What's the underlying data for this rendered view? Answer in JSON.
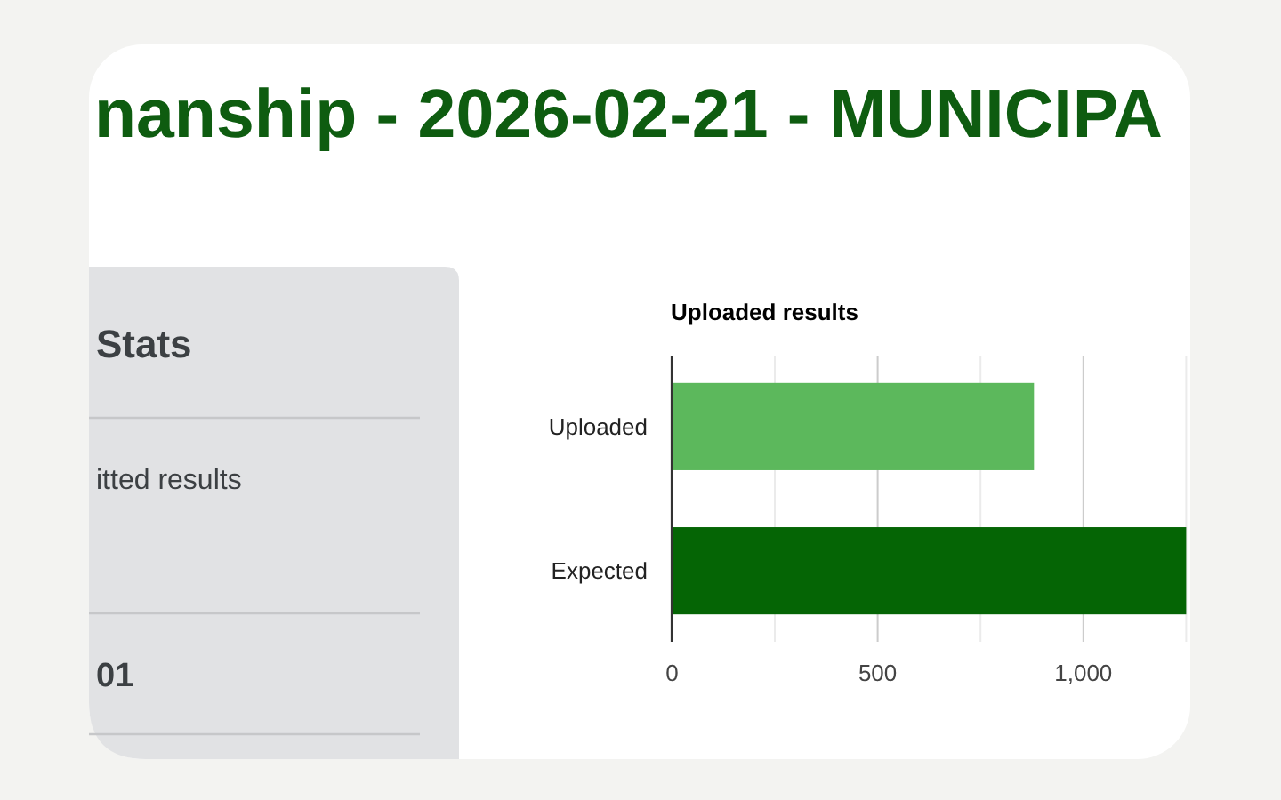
{
  "chart_data": [
    {
      "type": "other",
      "title": "nanship - 2026-02-21 - MUNICIPA"
    },
    {
      "type": "other",
      "title": "Stats",
      "annotations": [
        "itted results",
        "01"
      ]
    },
    {
      "type": "bar",
      "orientation": "horizontal",
      "title": "Uploaded results",
      "categories": [
        "Uploaded",
        "Expected"
      ],
      "values": [
        880,
        1250
      ],
      "colors": [
        "#5cb85c",
        "#056505"
      ],
      "xlim": [
        0,
        1250
      ],
      "xticks": [
        0,
        {
          "value": 250,
          "label": null
        },
        500,
        {
          "value": 750,
          "label": null
        },
        {
          "value": 1000,
          "label": "1,000"
        },
        {
          "value": 1250,
          "label": null
        }
      ],
      "grid": "x"
    }
  ]
}
